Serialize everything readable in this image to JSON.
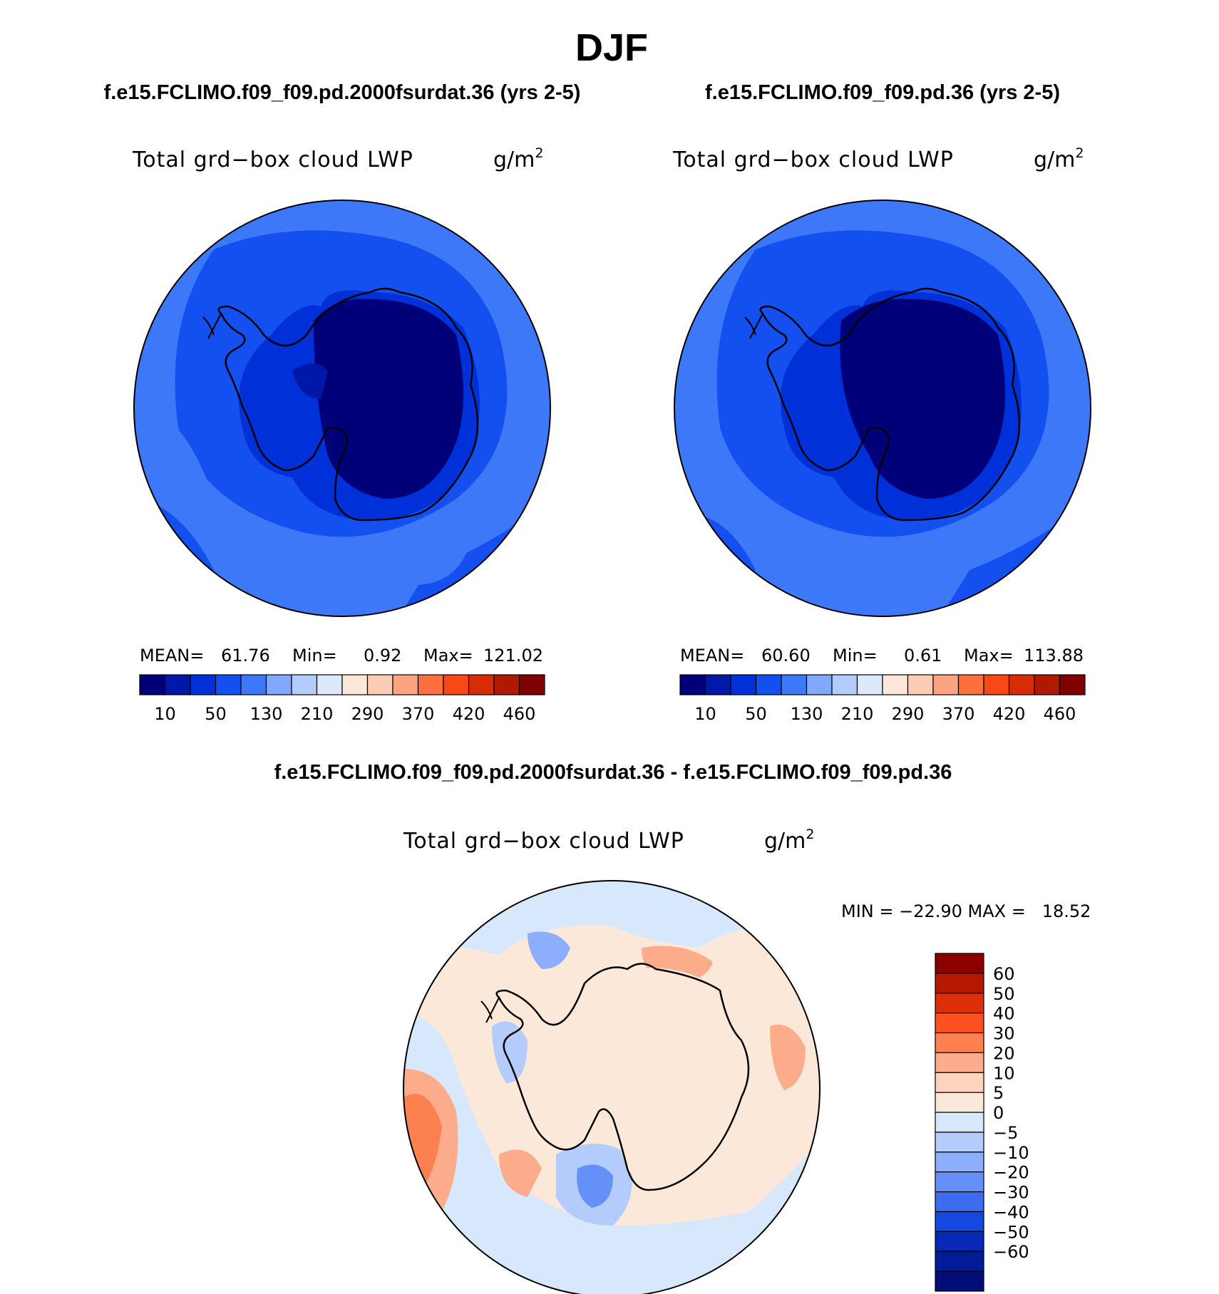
{
  "figure_title": "DJF",
  "chart_data": [
    {
      "type": "heatmap",
      "projection": "south-polar-stereographic",
      "title": "f.e15.FCLIMO.f09_f09.pd.2000fsurdat.36 (yrs 2-5)",
      "variable": "Total grd−box cloud LWP",
      "units_base": "g/m",
      "units_exp": "2",
      "stats": {
        "mean_label": "MEAN=",
        "mean": "61.76",
        "min_label": "Min=",
        "min": "0.92",
        "max_label": "Max=",
        "max": "121.02"
      },
      "colorbar": {
        "orientation": "horizontal",
        "colors": [
          "#000078",
          "#0018a8",
          "#0030d8",
          "#1450f0",
          "#3c78f8",
          "#80a8fc",
          "#b4ccfc",
          "#dce8fc",
          "#fce8d8",
          "#fcccb4",
          "#fca482",
          "#fc7040",
          "#f84818",
          "#d82c08",
          "#b01800",
          "#800000"
        ],
        "tick_labels": [
          "10",
          "50",
          "130",
          "210",
          "290",
          "370",
          "420",
          "460"
        ]
      }
    },
    {
      "type": "heatmap",
      "projection": "south-polar-stereographic",
      "title": "f.e15.FCLIMO.f09_f09.pd.36 (yrs 2-5)",
      "variable": "Total grd−box cloud LWP",
      "units_base": "g/m",
      "units_exp": "2",
      "stats": {
        "mean_label": "MEAN=",
        "mean": "60.60",
        "min_label": "Min=",
        "min": "0.61",
        "max_label": "Max=",
        "max": "113.88"
      },
      "colorbar": {
        "orientation": "horizontal",
        "colors": [
          "#000078",
          "#0018a8",
          "#0030d8",
          "#1450f0",
          "#3c78f8",
          "#80a8fc",
          "#b4ccfc",
          "#dce8fc",
          "#fce8d8",
          "#fcccb4",
          "#fca482",
          "#fc7040",
          "#f84818",
          "#d82c08",
          "#b01800",
          "#800000"
        ],
        "tick_labels": [
          "10",
          "50",
          "130",
          "210",
          "290",
          "370",
          "420",
          "460"
        ]
      }
    },
    {
      "type": "heatmap",
      "projection": "south-polar-stereographic",
      "title": "f.e15.FCLIMO.f09_f09.pd.2000fsurdat.36 - f.e15.FCLIMO.f09_f09.pd.36",
      "variable": "Total grd−box cloud LWP",
      "units_base": "g/m",
      "units_exp": "2",
      "minmax_text": "MIN = −22.90 MAX =   18.52",
      "colorbar": {
        "orientation": "vertical",
        "colors_top_to_bottom": [
          "#8c0000",
          "#b41800",
          "#dc3008",
          "#fc5020",
          "#fc8050",
          "#fcac8a",
          "#fcd4bc",
          "#fce8d8",
          "#d8e8fc",
          "#b4ccfc",
          "#8caefc",
          "#6490f8",
          "#3c6cf0",
          "#1448e0",
          "#0828b8",
          "#001c98",
          "#000c78"
        ],
        "tick_labels": [
          "60",
          "50",
          "40",
          "30",
          "20",
          "10",
          "5",
          "0",
          "−5",
          "−10",
          "−20",
          "−30",
          "−40",
          "−50",
          "−60"
        ]
      }
    }
  ]
}
